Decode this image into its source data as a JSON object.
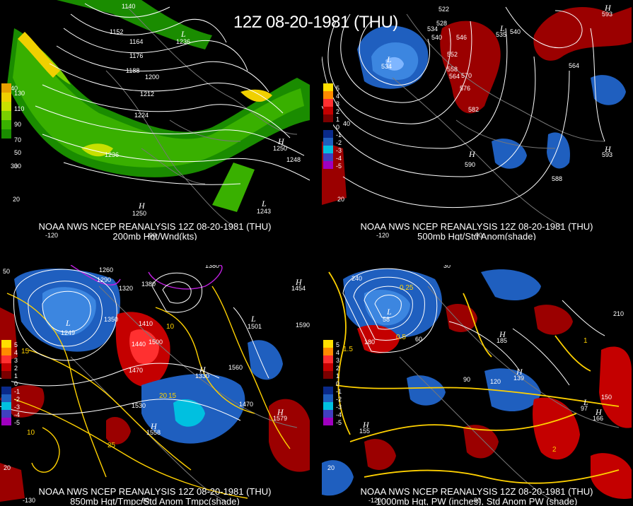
{
  "title": "12Z 08-20-1981 (THU)",
  "panels": [
    {
      "line1": "NOAA NWS NCEP REANALYSIS 12Z 08-20-1981 (THU)",
      "line2": "200mb Hgt/Wnd(kts)",
      "legend": [
        "130",
        "110",
        "90",
        "70",
        "50",
        "30"
      ],
      "legend_colors": [
        "#e8a000",
        "#f0d000",
        "#c8e000",
        "#7ad000",
        "#39b000",
        "#1a8c00"
      ],
      "contour_labels": [
        "1140",
        "1152",
        "1164",
        "1176",
        "1188",
        "1200",
        "1212",
        "1224",
        "1236",
        "1248"
      ],
      "highs": [
        "1250",
        "1250"
      ],
      "lows": [
        "1236",
        "1243"
      ],
      "lat_labels": [
        "40",
        "30",
        "20"
      ],
      "lon_labels": [
        "-120",
        "-90"
      ]
    },
    {
      "line1": "NOAA NWS NCEP REANALYSIS 12Z 08-20-1981 (THU)",
      "line2": "500mb Hgt/Std Anom(shade)",
      "legend": [
        "5",
        "4",
        "3",
        "2",
        "1",
        "0",
        "-1",
        "-2",
        "-3",
        "-4",
        "-5"
      ],
      "contour_labels": [
        "522",
        "528",
        "534",
        "540",
        "546",
        "552",
        "558",
        "564",
        "570",
        "576",
        "582",
        "588",
        "564",
        "540"
      ],
      "highs": [
        "590",
        "593",
        "593"
      ],
      "lows": [
        "534",
        "535"
      ],
      "lat_labels": [
        "40",
        "20"
      ],
      "lon_labels": [
        "-120",
        "-90"
      ]
    },
    {
      "line1": "NOAA NWS NCEP REANALYSIS 12Z 08-20-1981 (THU)",
      "line2": "850mb Hgt/Tmpc/Std Anom Tmpc(shade)",
      "legend": [
        "5",
        "4",
        "3",
        "2",
        "1",
        "0",
        "-1",
        "-2",
        "-3",
        "-4",
        "-5"
      ],
      "contour_labels": [
        "1260",
        "1290",
        "1320",
        "1380",
        "1350",
        "1410",
        "1440",
        "1470",
        "1500",
        "1530",
        "1560",
        "1590",
        "1380",
        "1470"
      ],
      "temp_labels": [
        "15",
        "10",
        "20",
        "15",
        "25",
        "10"
      ],
      "highs": [
        "1454",
        "1558",
        "1579",
        "1330"
      ],
      "lows": [
        "1249",
        "1501"
      ],
      "lat_labels": [
        "50",
        "20"
      ],
      "lon_labels": [
        "-130",
        "-90"
      ]
    },
    {
      "line1": "NOAA NWS NCEP REANALYSIS 12Z 08-20-1981 (THU)",
      "line2": "1000mb Hgt, PW (inches), Std Anom PW (shade)",
      "legend": [
        "5",
        "4",
        "3",
        "2",
        "1",
        "0",
        "-1",
        "-2",
        "-3",
        "-4",
        "-5"
      ],
      "contour_labels": [
        "240",
        "180",
        "120",
        "90",
        "60",
        "30",
        "150",
        "210",
        "0.25",
        "0.5",
        "1",
        "1.5",
        "2"
      ],
      "highs": [
        "139",
        "155",
        "166",
        "185"
      ],
      "lows": [
        "58",
        "97"
      ],
      "lat_labels": [
        "20"
      ],
      "lon_labels": [
        "-120",
        "-90"
      ]
    }
  ]
}
